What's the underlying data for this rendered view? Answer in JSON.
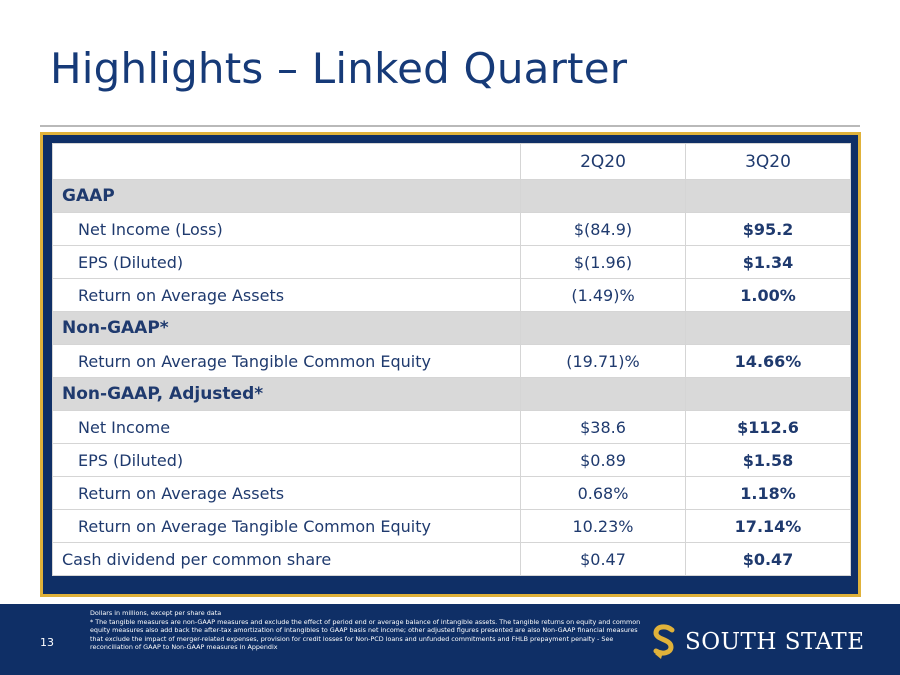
{
  "slide": {
    "title": "Highlights – Linked Quarter",
    "page_number": "13"
  },
  "table": {
    "headers": [
      "",
      "2Q20",
      "3Q20"
    ],
    "sections": [
      {
        "name": "GAAP",
        "rows": [
          {
            "label": "Net Income (Loss)",
            "q2": "$(84.9)",
            "q3": "$95.2"
          },
          {
            "label": "EPS (Diluted)",
            "q2": "$(1.96)",
            "q3": "$1.34"
          },
          {
            "label": "Return on Average Assets",
            "q2": "(1.49)%",
            "q3": "1.00%"
          }
        ]
      },
      {
        "name": "Non-GAAP*",
        "rows": [
          {
            "label": "Return on Average Tangible Common Equity",
            "q2": "(19.71)%",
            "q3": "14.66%"
          }
        ]
      },
      {
        "name": "Non-GAAP, Adjusted*",
        "rows": [
          {
            "label": "Net Income",
            "q2": "$38.6",
            "q3": "$112.6"
          },
          {
            "label": "EPS (Diluted)",
            "q2": "$0.89",
            "q3": "$1.58"
          },
          {
            "label": "Return on Average Assets",
            "q2": "0.68%",
            "q3": "1.18%"
          },
          {
            "label": "Return on Average Tangible Common Equity",
            "q2": "10.23%",
            "q3": "17.14%"
          }
        ]
      }
    ],
    "final_row": {
      "label": "Cash dividend per common share",
      "q2": "$0.47",
      "q3": "$0.47"
    }
  },
  "footnote": {
    "line1": "Dollars in millions, except per share data",
    "line2": "*    The tangible measures are non-GAAP measures and exclude the effect of period end or average balance of intangible assets. The tangible returns on equity and common equity measures also add back the after-tax amortization of intangibles to GAAP basis net income; other adjusted figures presented are also Non-GAAP financial measures that exclude the impact of merger-related expenses, provision for credit losses for Non-PCD loans and unfunded commitments and FHLB prepayment penalty - See reconciliation of GAAP to Non-GAAP measures in Appendix"
  },
  "logo": {
    "text": "SOUTH STATE",
    "icon": "s-logo-icon",
    "color": "#e0b23a"
  }
}
